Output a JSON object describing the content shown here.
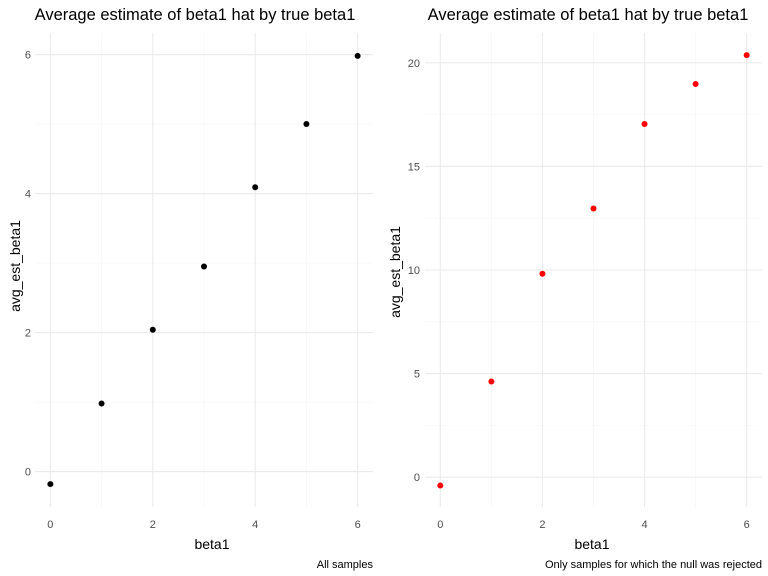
{
  "chart_data": [
    {
      "type": "scatter",
      "title": "Average estimate of beta1 hat by true beta1",
      "xlabel": "beta1",
      "ylabel": "avg_est_beta1",
      "caption": "All samples",
      "xlim": [
        0,
        6
      ],
      "ylim": [
        -0.2,
        6
      ],
      "x_ticks": [
        0,
        2,
        4,
        6
      ],
      "y_ticks": [
        0,
        2,
        4,
        6
      ],
      "grid": true,
      "point_color": "#000000",
      "x": [
        0,
        1,
        2,
        3,
        4,
        5,
        6
      ],
      "y": [
        -0.18,
        0.98,
        2.04,
        2.95,
        4.09,
        5.0,
        5.98
      ]
    },
    {
      "type": "scatter",
      "title": "Average estimate of beta1 hat by true beta1",
      "xlabel": "beta1",
      "ylabel": "avg_est_beta1",
      "caption": "Only samples for which the null was rejected",
      "xlim": [
        0,
        6
      ],
      "ylim": [
        -0.4,
        20.4
      ],
      "x_ticks": [
        0,
        2,
        4,
        6
      ],
      "y_ticks": [
        0,
        5,
        10,
        15,
        20
      ],
      "grid": true,
      "point_color": "#ff0000",
      "x": [
        0,
        1,
        2,
        3,
        4,
        5,
        6
      ],
      "y": [
        -0.4,
        4.62,
        9.82,
        12.97,
        17.05,
        18.98,
        20.37
      ]
    }
  ]
}
